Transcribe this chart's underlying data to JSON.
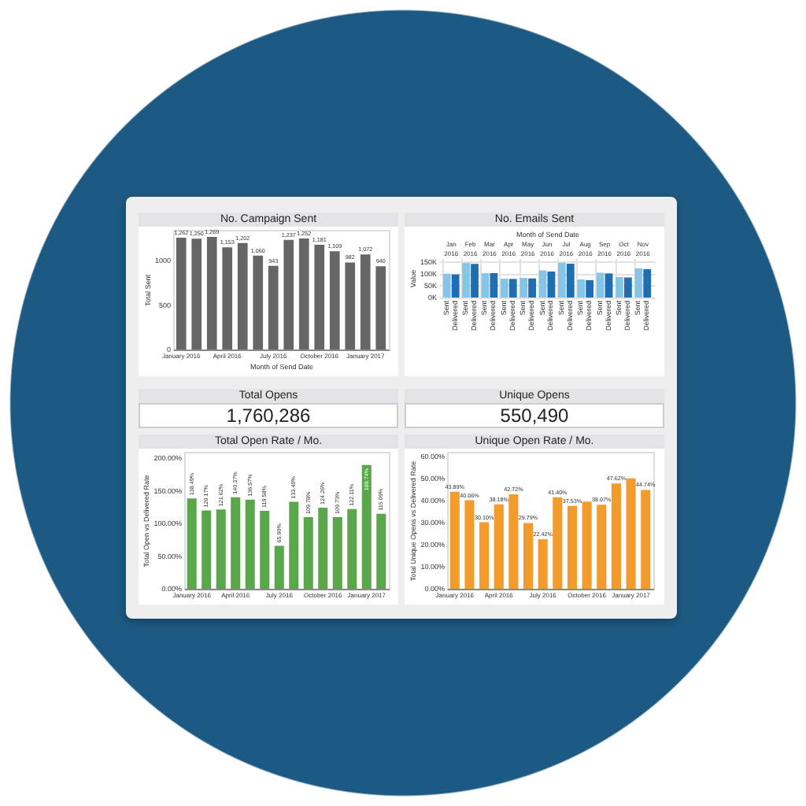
{
  "chart_data": [
    {
      "type": "bar",
      "title": "No. Campaign Sent",
      "xlabel": "Month of Send Date",
      "ylabel": "Total Sent",
      "color": "#666666",
      "categories": [
        "January 2016",
        null,
        null,
        "April 2016",
        null,
        null,
        "July 2016",
        null,
        null,
        "October 2016",
        null,
        null,
        "January 2017",
        null
      ],
      "values": [
        1262,
        1250,
        1269,
        1153,
        1202,
        1060,
        943,
        1237,
        1252,
        1181,
        1109,
        982,
        1072,
        940
      ],
      "value_labels": [
        "1,262",
        "1,250",
        "1,269",
        "1,153",
        "1,202",
        "1,060",
        "943",
        "1,237",
        "1,252",
        "1,181",
        "1,109",
        "982",
        "1,072",
        "940"
      ],
      "ylim": [
        0,
        1350
      ],
      "yticks": [
        0,
        500,
        1000
      ]
    },
    {
      "type": "bar",
      "title": "No. Emails Sent",
      "xlabel": "Month of Send Date",
      "ylabel": "Value",
      "grid": true,
      "categories": [
        "Jan 2016",
        "Feb 2016",
        "Mar 2016",
        "Apr 2016",
        "May 2016",
        "Jun 2016",
        "Jul 2016",
        "Aug 2016",
        "Sep 2016",
        "Oct 2016",
        "Nov 2016"
      ],
      "series": [
        {
          "name": "Sent",
          "color": "#86c5e8",
          "values": [
            100000,
            145000,
            102000,
            79000,
            82000,
            114000,
            146000,
            76000,
            104000,
            86000,
            122000
          ]
        },
        {
          "name": "Delivered",
          "color": "#1f6db3",
          "values": [
            97000,
            141000,
            102000,
            78000,
            80000,
            109000,
            142000,
            73000,
            101000,
            84000,
            119000
          ]
        }
      ],
      "ylim": [
        0,
        165000
      ],
      "yticks": [
        {
          "value": 0,
          "label": "0K"
        },
        {
          "value": 50000,
          "label": "50K"
        },
        {
          "value": 100000,
          "label": "100K"
        },
        {
          "value": 150000,
          "label": "150K"
        }
      ]
    },
    {
      "type": "other",
      "title": "Total Opens",
      "annotations": [
        "1,760,286"
      ]
    },
    {
      "type": "other",
      "title": "Unique Opens",
      "annotations": [
        "550,490"
      ]
    },
    {
      "type": "bar",
      "title": "Total Open Rate / Mo.",
      "ylabel": "Total Open vs Delivered Rate",
      "color": "#5aa64a",
      "categories": [
        "January 2016",
        null,
        null,
        "April 2016",
        null,
        null,
        "July 2016",
        null,
        null,
        "October 2016",
        null,
        null,
        "January 2017",
        null
      ],
      "values": [
        138.49,
        120.17,
        121.62,
        140.37,
        136.57,
        119.58,
        65.9,
        133.4,
        109.78,
        124.26,
        109.73,
        122.11,
        189.74,
        115.09
      ],
      "value_labels": [
        "138.49%",
        "120.17%",
        "121.62%",
        "140.37%",
        "136.57%",
        "119.58%",
        "65.90%",
        "133.40%",
        "109.78%",
        "124.26%",
        "109.73%",
        "122.11%",
        "189.74%",
        "115.09%"
      ],
      "ylim": [
        0,
        210
      ],
      "yticks": [
        {
          "value": 0,
          "label": "0.00%"
        },
        {
          "value": 50,
          "label": "50.00%"
        },
        {
          "value": 100,
          "label": "100.00%"
        },
        {
          "value": 150,
          "label": "150.00%"
        },
        {
          "value": 200,
          "label": "200.00%"
        }
      ]
    },
    {
      "type": "bar",
      "title": "Unique Open Rate / Mo.",
      "ylabel": "Total Unique Opens vs Delivered Rate",
      "color": "#f39c2b",
      "categories": [
        "January 2016",
        null,
        null,
        "April 2016",
        null,
        null,
        "July 2016",
        null,
        null,
        "October 2016",
        null,
        null,
        "January 2017",
        null
      ],
      "values": [
        43.89,
        40.06,
        30.1,
        38.18,
        42.72,
        29.79,
        22.42,
        41.4,
        37.53,
        39.5,
        38.07,
        47.62,
        50,
        44.74
      ],
      "value_labels": [
        "43.89%",
        "40.06%",
        "30.10%",
        "38.18%",
        "42.72%",
        "29.79%",
        "22.42%",
        "41.40%",
        "37.53%",
        null,
        "38.07%",
        "47.62%",
        null,
        "44.74%"
      ],
      "ylim": [
        0,
        62
      ],
      "yticks": [
        {
          "value": 0,
          "label": "0.00%"
        },
        {
          "value": 10,
          "label": "10.00%"
        },
        {
          "value": 20,
          "label": "20.00%"
        },
        {
          "value": 30,
          "label": "30.00%"
        },
        {
          "value": 40,
          "label": "40.00%"
        },
        {
          "value": 50,
          "label": "50.00%"
        },
        {
          "value": 60,
          "label": "60.00%"
        }
      ]
    }
  ]
}
